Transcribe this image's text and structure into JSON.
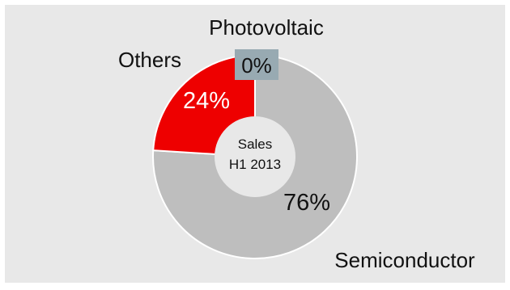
{
  "chart_data": {
    "type": "pie",
    "variant": "donut",
    "center_label": [
      "Sales",
      "H1 2013"
    ],
    "slices": [
      {
        "label": "Semiconductor",
        "value": 76,
        "value_label": "76%",
        "color": "#bebebe"
      },
      {
        "label": "Others",
        "value": 24,
        "value_label": "24%",
        "color": "#ee0000"
      },
      {
        "label": "Photovoltaic",
        "value": 0,
        "value_label": "0%",
        "color": "#98aab2"
      }
    ],
    "background_color": "#e8e8e8",
    "center_color": "#e8e8e8",
    "legend": "none"
  }
}
